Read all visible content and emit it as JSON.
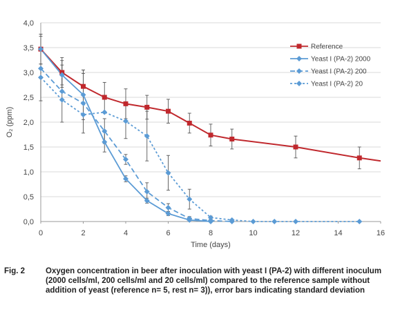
{
  "chart_data": {
    "type": "line",
    "xlabel": "Time (days)",
    "ylabel": "O₂ (ppm)",
    "xlim": [
      0,
      16
    ],
    "ylim": [
      0,
      4
    ],
    "xticks": [
      "0",
      "2",
      "4",
      "6",
      "8",
      "10",
      "12",
      "14",
      "16"
    ],
    "yticks": [
      "0,0",
      "0,5",
      "1,0",
      "1,5",
      "2,0",
      "2,5",
      "3,0",
      "3,5",
      "4,0"
    ],
    "grid": "horizontal",
    "legend_position": "top-right",
    "series": [
      {
        "name": "Reference",
        "color": "#c0282d",
        "marker": "square",
        "dash": "solid",
        "x": [
          0,
          1,
          2,
          3,
          4,
          5,
          6,
          7,
          8,
          9,
          12,
          15,
          16
        ],
        "y": [
          3.47,
          3.0,
          2.72,
          2.5,
          2.37,
          2.3,
          2.22,
          1.98,
          1.74,
          1.66,
          1.5,
          1.28,
          1.22
        ],
        "markers": [
          true,
          true,
          true,
          true,
          true,
          true,
          true,
          true,
          true,
          true,
          true,
          true,
          false
        ],
        "err": [
          0.3,
          0.3,
          0.33,
          0.3,
          0.3,
          0.24,
          0.24,
          0.2,
          0.22,
          0.2,
          0.22,
          0.22,
          0
        ]
      },
      {
        "name": "Yeast I (PA-2) 2000",
        "color": "#5b9bd5",
        "marker": "diamond",
        "dash": "solid",
        "x": [
          0,
          1,
          2,
          3,
          4,
          5,
          6,
          7,
          8
        ],
        "y": [
          3.47,
          2.95,
          2.55,
          1.6,
          0.86,
          0.42,
          0.16,
          0.03,
          0.0
        ],
        "markers": [
          true,
          true,
          true,
          true,
          true,
          true,
          true,
          true,
          true
        ],
        "err": [
          0.3,
          0.2,
          0.5,
          0.2,
          0.06,
          0.05,
          0.04,
          0.01,
          0
        ]
      },
      {
        "name": "Yeast I (PA-2) 200",
        "color": "#5b9bd5",
        "marker": "diamond",
        "dash": "long",
        "x": [
          0,
          1,
          2,
          3,
          4,
          5,
          6,
          7,
          8,
          9
        ],
        "y": [
          3.08,
          2.62,
          2.38,
          1.82,
          1.25,
          0.6,
          0.28,
          0.06,
          0.02,
          0.0
        ],
        "markers": [
          true,
          true,
          true,
          true,
          true,
          true,
          true,
          true,
          true,
          true
        ],
        "err": [
          0.65,
          0.62,
          0.6,
          0.25,
          0.1,
          0.18,
          0.08,
          0.04,
          0,
          0
        ]
      },
      {
        "name": "Yeast I (PA-2) 20",
        "color": "#5b9bd5",
        "marker": "diamond",
        "dash": "short",
        "x": [
          0,
          1,
          2,
          3,
          4,
          5,
          6,
          7,
          8,
          9,
          10,
          11,
          12,
          15
        ],
        "y": [
          2.9,
          2.45,
          2.15,
          2.2,
          2.02,
          1.72,
          0.98,
          0.45,
          0.08,
          0.03,
          0.0,
          0.0,
          0.0,
          0.0
        ],
        "markers": [
          true,
          true,
          true,
          true,
          true,
          true,
          true,
          true,
          true,
          true,
          true,
          true,
          true,
          true
        ],
        "err": [
          0,
          0,
          0,
          0,
          0.35,
          0.5,
          0.35,
          0.2,
          0.03,
          0,
          0,
          0,
          0,
          0
        ]
      }
    ]
  },
  "caption": {
    "label": "Fig. 2",
    "text": "Oxygen concentration in beer after inoculation with yeast I (PA-2) with different inoculum (2000 cells/ml, 200 cells/ml and 20 cells/ml) compared to the reference sample without addition of yeast (reference n= 5, rest n= 3)), error bars indicating standard deviation"
  }
}
